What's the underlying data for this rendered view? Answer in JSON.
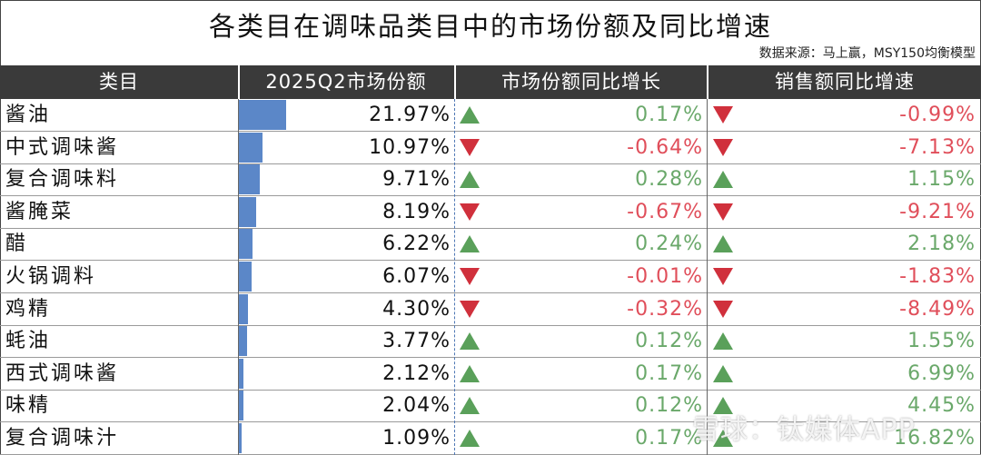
{
  "title": "各类目在调味品类目中的市场份额及同比增速",
  "source": "数据来源：马上赢，MSY150均衡模型",
  "watermark": "雪球：钛媒体APP",
  "colors": {
    "bar": "#5b87c8",
    "up": "#5aa05a",
    "down": "#d0303c",
    "positive_text": "#6aa86a",
    "negative_text": "#e04e5a",
    "header_bg": "#3a3a3a"
  },
  "chart_data": {
    "type": "table",
    "columns": [
      "类目",
      "2025Q2市场份额",
      "市场份额同比增长",
      "销售额同比增速"
    ],
    "rows": [
      {
        "category": "酱油",
        "share": 21.97,
        "share_label": "21.97%",
        "share_yoy": 0.17,
        "share_yoy_label": "0.17%",
        "sales_yoy": -0.99,
        "sales_yoy_label": "-0.99%"
      },
      {
        "category": "中式调味酱",
        "share": 10.97,
        "share_label": "10.97%",
        "share_yoy": -0.64,
        "share_yoy_label": "-0.64%",
        "sales_yoy": -7.13,
        "sales_yoy_label": "-7.13%"
      },
      {
        "category": "复合调味料",
        "share": 9.71,
        "share_label": "9.71%",
        "share_yoy": 0.28,
        "share_yoy_label": "0.28%",
        "sales_yoy": 1.15,
        "sales_yoy_label": "1.15%"
      },
      {
        "category": "酱腌菜",
        "share": 8.19,
        "share_label": "8.19%",
        "share_yoy": -0.67,
        "share_yoy_label": "-0.67%",
        "sales_yoy": -9.21,
        "sales_yoy_label": "-9.21%"
      },
      {
        "category": "醋",
        "share": 6.22,
        "share_label": "6.22%",
        "share_yoy": 0.24,
        "share_yoy_label": "0.24%",
        "sales_yoy": 2.18,
        "sales_yoy_label": "2.18%"
      },
      {
        "category": "火锅调料",
        "share": 6.07,
        "share_label": "6.07%",
        "share_yoy": -0.01,
        "share_yoy_label": "-0.01%",
        "sales_yoy": -1.83,
        "sales_yoy_label": "-1.83%"
      },
      {
        "category": "鸡精",
        "share": 4.3,
        "share_label": "4.30%",
        "share_yoy": -0.32,
        "share_yoy_label": "-0.32%",
        "sales_yoy": -8.49,
        "sales_yoy_label": "-8.49%"
      },
      {
        "category": "蚝油",
        "share": 3.77,
        "share_label": "3.77%",
        "share_yoy": 0.12,
        "share_yoy_label": "0.12%",
        "sales_yoy": 1.55,
        "sales_yoy_label": "1.55%"
      },
      {
        "category": "西式调味酱",
        "share": 2.12,
        "share_label": "2.12%",
        "share_yoy": 0.17,
        "share_yoy_label": "0.17%",
        "sales_yoy": 6.99,
        "sales_yoy_label": "6.99%"
      },
      {
        "category": "味精",
        "share": 2.04,
        "share_label": "2.04%",
        "share_yoy": 0.12,
        "share_yoy_label": "0.12%",
        "sales_yoy": 4.45,
        "sales_yoy_label": "4.45%"
      },
      {
        "category": "复合调味汁",
        "share": 1.09,
        "share_label": "1.09%",
        "share_yoy": 0.17,
        "share_yoy_label": "0.17%",
        "sales_yoy": 16.82,
        "sales_yoy_label": "16.82%"
      }
    ]
  }
}
